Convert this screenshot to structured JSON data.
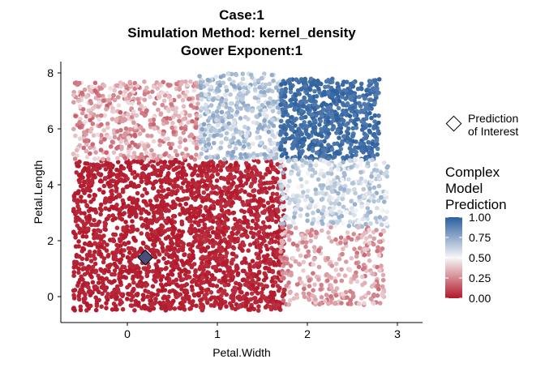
{
  "chart_data": {
    "type": "scatter",
    "title_lines": [
      "Case:1",
      "Simulation Method: kernel_density",
      "Gower Exponent:1"
    ],
    "xlabel": "Petal.Width",
    "ylabel": "Petal.Length",
    "xlim": [
      -0.75,
      3.3
    ],
    "ylim": [
      -0.9,
      8.5
    ],
    "xticks": [
      0,
      1,
      2,
      3
    ],
    "yticks": [
      0,
      2,
      4,
      6,
      8
    ],
    "grid": false,
    "color_scale": {
      "title_lines": [
        "Complex",
        "Model",
        "Prediction"
      ],
      "breaks": [
        1.0,
        0.75,
        0.5,
        0.25,
        0.0
      ],
      "break_labels": [
        "1.00",
        "0.75",
        "0.50",
        "0.25",
        "0.00"
      ],
      "low_color": "#B2182B",
      "mid_color": "#F7F7F7",
      "high_color": "#2C5F9E"
    },
    "point_of_interest": {
      "x": 0.2,
      "y": 1.4,
      "label_lines": [
        "Prediction",
        "of Interest"
      ],
      "fill": "#4B4E7A"
    },
    "regions": [
      {
        "x_range": [
          -0.6,
          0.8
        ],
        "y_range": [
          -0.5,
          4.9
        ],
        "n": 1300,
        "prediction_range": [
          0.0,
          0.04
        ]
      },
      {
        "x_range": [
          0.8,
          1.75
        ],
        "y_range": [
          -0.5,
          4.9
        ],
        "n": 1000,
        "prediction_range": [
          0.0,
          0.06
        ]
      },
      {
        "x_range": [
          -0.6,
          0.8
        ],
        "y_range": [
          4.9,
          7.7
        ],
        "n": 520,
        "prediction_range": [
          0.15,
          0.45
        ]
      },
      {
        "x_range": [
          0.8,
          1.7
        ],
        "y_range": [
          4.9,
          8.0
        ],
        "n": 420,
        "prediction_range": [
          0.55,
          0.78
        ]
      },
      {
        "x_range": [
          1.7,
          2.8
        ],
        "y_range": [
          4.9,
          7.8
        ],
        "n": 700,
        "prediction_range": [
          0.9,
          1.0
        ]
      },
      {
        "x_range": [
          1.7,
          2.9
        ],
        "y_range": [
          2.5,
          4.9
        ],
        "n": 380,
        "prediction_range": [
          0.5,
          0.74
        ]
      },
      {
        "x_range": [
          1.7,
          2.85
        ],
        "y_range": [
          -0.3,
          2.5
        ],
        "n": 340,
        "prediction_range": [
          0.18,
          0.42
        ]
      }
    ]
  }
}
